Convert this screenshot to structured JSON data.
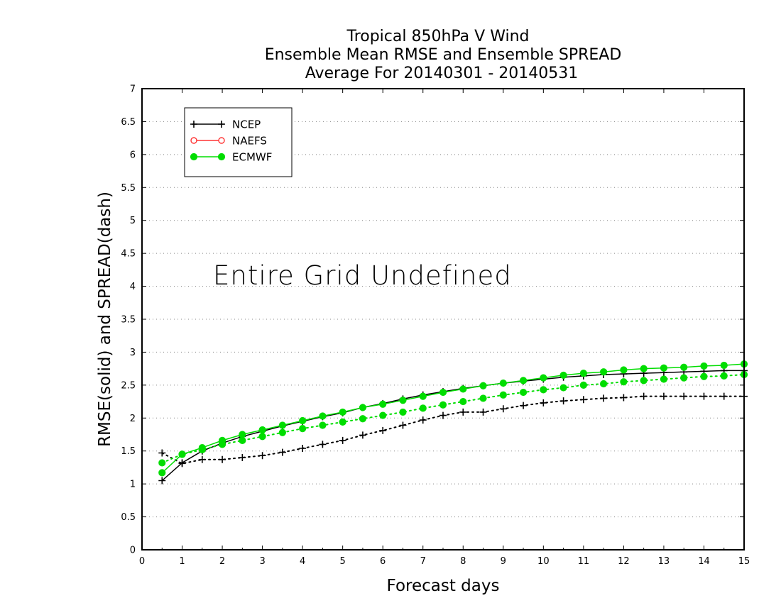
{
  "chart_data": {
    "type": "line",
    "title": [
      "Tropical 850hPa V Wind",
      "Ensemble Mean RMSE and Ensemble SPREAD",
      "Average For 20140301 - 20140531"
    ],
    "xlabel": "Forecast days",
    "ylabel": "RMSE(solid) and SPREAD(dash)",
    "xlim": [
      0,
      15
    ],
    "ylim": [
      0,
      7
    ],
    "xticks": [
      "0",
      "1",
      "2",
      "3",
      "4",
      "5",
      "6",
      "7",
      "8",
      "9",
      "10",
      "11",
      "12",
      "13",
      "14",
      "15"
    ],
    "yticks": [
      "0",
      "0.5",
      "1",
      "1.5",
      "2",
      "2.5",
      "3",
      "3.5",
      "4",
      "4.5",
      "5",
      "5.5",
      "6",
      "6.5",
      "7"
    ],
    "grid": true,
    "legend_position": "top-left",
    "annotation": "Entire Grid Undefined",
    "x": [
      0.5,
      1,
      1.5,
      2,
      2.5,
      3,
      3.5,
      4,
      4.5,
      5,
      5.5,
      6,
      6.5,
      7,
      7.5,
      8,
      8.5,
      9,
      9.5,
      10,
      10.5,
      11,
      11.5,
      12,
      12.5,
      13,
      13.5,
      14,
      14.5,
      15
    ],
    "series": [
      {
        "name": "NCEP",
        "color": "#000000",
        "marker": "plus",
        "rmse": [
          1.05,
          1.32,
          1.5,
          1.62,
          1.72,
          1.8,
          1.88,
          1.95,
          2.02,
          2.08,
          2.16,
          2.22,
          2.29,
          2.35,
          2.4,
          2.45,
          2.49,
          2.53,
          2.56,
          2.59,
          2.62,
          2.64,
          2.66,
          2.67,
          2.68,
          2.69,
          2.7,
          2.71,
          2.72,
          2.72
        ],
        "spread": [
          1.47,
          1.31,
          1.37,
          1.37,
          1.4,
          1.43,
          1.48,
          1.54,
          1.6,
          1.66,
          1.74,
          1.81,
          1.89,
          1.97,
          2.04,
          2.09,
          2.09,
          2.14,
          2.19,
          2.23,
          2.26,
          2.28,
          2.3,
          2.31,
          2.33,
          2.33,
          2.33,
          2.33,
          2.33,
          2.33
        ]
      },
      {
        "name": "NAEFS",
        "color": "#ff3333",
        "marker": "open-circle",
        "rmse": [],
        "spread": []
      },
      {
        "name": "ECMWF",
        "color": "#00dd00",
        "marker": "filled-circle",
        "rmse": [
          1.17,
          1.45,
          1.55,
          1.66,
          1.75,
          1.82,
          1.89,
          1.96,
          2.03,
          2.09,
          2.16,
          2.21,
          2.27,
          2.33,
          2.39,
          2.44,
          2.49,
          2.53,
          2.57,
          2.61,
          2.65,
          2.68,
          2.7,
          2.73,
          2.75,
          2.76,
          2.77,
          2.79,
          2.8,
          2.82
        ],
        "spread": [
          1.32,
          1.45,
          1.52,
          1.6,
          1.66,
          1.72,
          1.78,
          1.84,
          1.89,
          1.94,
          1.99,
          2.04,
          2.09,
          2.15,
          2.2,
          2.25,
          2.3,
          2.35,
          2.39,
          2.43,
          2.46,
          2.5,
          2.52,
          2.55,
          2.57,
          2.59,
          2.61,
          2.63,
          2.64,
          2.66
        ]
      }
    ]
  }
}
